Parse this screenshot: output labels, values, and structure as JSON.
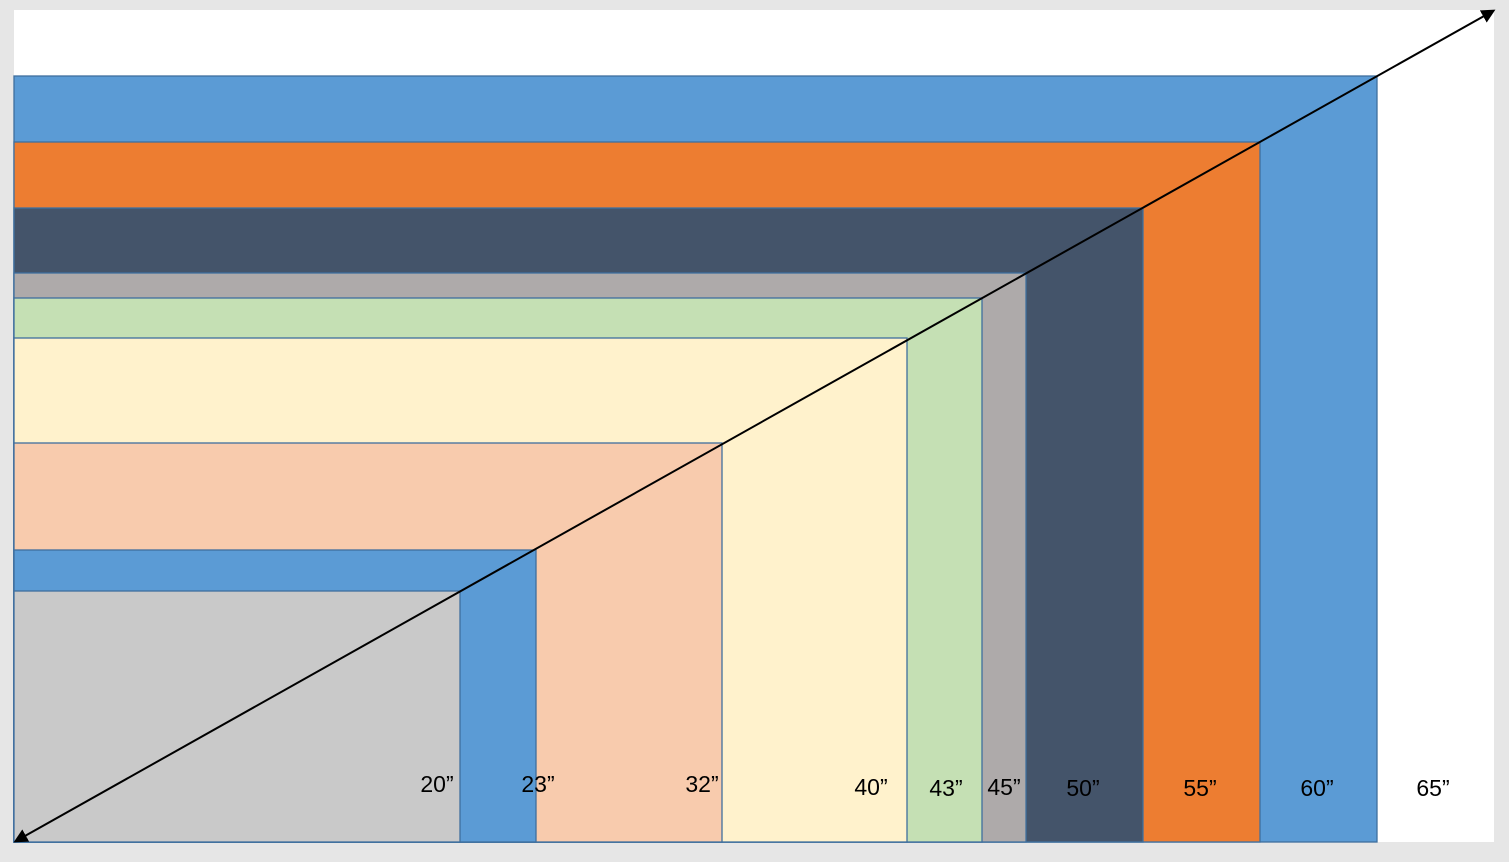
{
  "diagram": {
    "background": "#ffffff",
    "frame": "#e6e6e6",
    "outline": "#3f6f9e",
    "diagonal_color": "#000000",
    "screens": [
      {
        "label": "65”",
        "color": "#ffffff"
      },
      {
        "label": "60”",
        "color": "#5b9bd5"
      },
      {
        "label": "55”",
        "color": "#ed7d31"
      },
      {
        "label": "50”",
        "color": "#44546a"
      },
      {
        "label": "45”",
        "color": "#aeaaaa"
      },
      {
        "label": "43”",
        "color": "#c5e0b4"
      },
      {
        "label": "40”",
        "color": "#fff2cc"
      },
      {
        "label": "32”",
        "color": "#f8cbad"
      },
      {
        "label": "23”",
        "color": "#5b9bd5"
      },
      {
        "label": "20”",
        "color": "#c9c9c9"
      }
    ]
  }
}
